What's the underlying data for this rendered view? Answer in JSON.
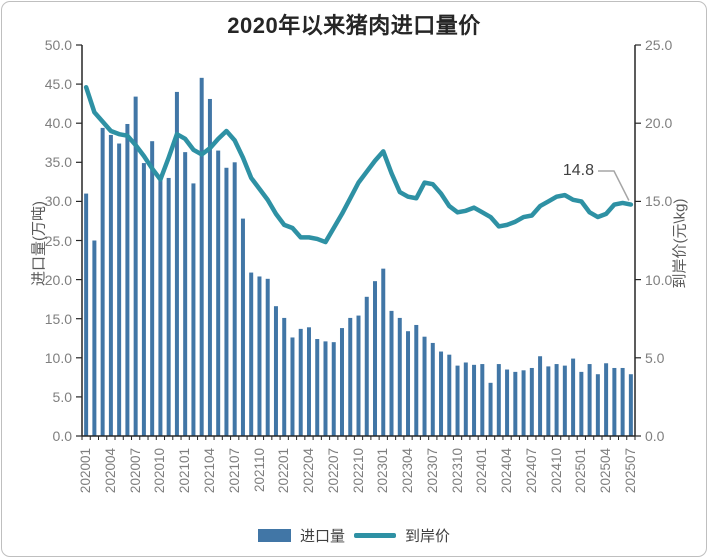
{
  "title": "2020年以来猪肉进口量价",
  "annotation": {
    "label": "14.8",
    "points_to": "202507"
  },
  "legend": {
    "bar_label": "进口量",
    "line_label": "到岸价"
  },
  "colors": {
    "bar": "#4176A6",
    "line": "#2E91A4",
    "axis": "#262626",
    "tick_label": "#7f7f7f",
    "axis_title": "#595959",
    "leader": "#a6a6a6",
    "card_border": "#bfbfbf"
  },
  "chart_data": {
    "type": "bar",
    "subtype": "combo-bar-line-dual-axis",
    "title": "2020年以来猪肉进口量价",
    "categories": [
      "202001",
      "202002",
      "202003",
      "202004",
      "202005",
      "202006",
      "202007",
      "202008",
      "202009",
      "202010",
      "202011",
      "202012",
      "202101",
      "202102",
      "202103",
      "202104",
      "202105",
      "202106",
      "202107",
      "202108",
      "202109",
      "202110",
      "202111",
      "202112",
      "202201",
      "202202",
      "202203",
      "202204",
      "202205",
      "202206",
      "202207",
      "202208",
      "202209",
      "202210",
      "202211",
      "202212",
      "202301",
      "202302",
      "202303",
      "202304",
      "202305",
      "202306",
      "202307",
      "202308",
      "202309",
      "202310",
      "202311",
      "202312",
      "202401",
      "202402",
      "202403",
      "202404",
      "202405",
      "202406",
      "202407",
      "202408",
      "202409",
      "202410",
      "202411",
      "202412",
      "202501",
      "202502",
      "202503",
      "202504",
      "202505",
      "202506",
      "202507"
    ],
    "x_labeled_every": 3,
    "x_tick_labels": [
      "202001",
      "202004",
      "202007",
      "202010",
      "202101",
      "202104",
      "202107",
      "202110",
      "202201",
      "202204",
      "202207",
      "202210",
      "202301",
      "202304",
      "202307",
      "202310",
      "202401",
      "202404",
      "202407",
      "202410",
      "202501",
      "202504",
      "202507"
    ],
    "series": [
      {
        "name": "进口量",
        "type": "bar",
        "axis": "left",
        "values": [
          31.0,
          25.0,
          39.4,
          38.5,
          37.4,
          39.9,
          43.4,
          34.9,
          37.7,
          33.3,
          33.0,
          44.0,
          36.3,
          32.3,
          45.8,
          43.1,
          36.5,
          34.3,
          35.0,
          27.8,
          20.9,
          20.4,
          20.1,
          16.6,
          15.1,
          12.6,
          13.7,
          13.9,
          12.4,
          12.1,
          12.0,
          13.8,
          15.1,
          15.4,
          17.8,
          19.8,
          21.4,
          16.0,
          15.1,
          13.4,
          14.2,
          12.7,
          11.9,
          10.8,
          10.4,
          9.0,
          9.4,
          9.1,
          9.2,
          6.8,
          9.2,
          8.5,
          8.2,
          8.4,
          8.7,
          10.2,
          8.9,
          9.2,
          9.0,
          9.9,
          8.2,
          9.2,
          7.9,
          9.3,
          8.7,
          8.7,
          7.9
        ]
      },
      {
        "name": "到岸价",
        "type": "line",
        "axis": "right",
        "values": [
          22.3,
          20.7,
          20.1,
          19.5,
          19.3,
          19.2,
          18.6,
          17.9,
          17.1,
          16.4,
          17.8,
          19.3,
          19.0,
          18.3,
          18.0,
          18.4,
          19.0,
          19.5,
          18.9,
          17.8,
          16.5,
          15.8,
          15.1,
          14.2,
          13.5,
          13.3,
          12.7,
          12.7,
          12.6,
          12.4,
          13.3,
          14.2,
          15.2,
          16.2,
          16.9,
          17.6,
          18.2,
          16.8,
          15.6,
          15.3,
          15.2,
          16.2,
          16.1,
          15.5,
          14.7,
          14.3,
          14.4,
          14.6,
          14.3,
          14.0,
          13.4,
          13.5,
          13.7,
          14.0,
          14.1,
          14.7,
          15.0,
          15.3,
          15.4,
          15.1,
          15.0,
          14.3,
          14.0,
          14.2,
          14.8,
          14.9,
          14.8
        ]
      }
    ],
    "left_axis": {
      "title": "进口量(万吨)",
      "min": 0,
      "max": 50,
      "step": 5,
      "tick_labels": [
        "0.0",
        "5.0",
        "10.0",
        "15.0",
        "20.0",
        "25.0",
        "30.0",
        "35.0",
        "40.0",
        "45.0",
        "50.0"
      ]
    },
    "right_axis": {
      "title": "到岸价(元\\kg)",
      "min": 0,
      "max": 25,
      "step": 5,
      "tick_labels": [
        "0.0",
        "5.0",
        "10.0",
        "15.0",
        "20.0",
        "25.0"
      ]
    },
    "grid": false,
    "legend_position": "bottom",
    "data_label": {
      "text": "14.8",
      "category": "202507",
      "series": "到岸价"
    }
  }
}
